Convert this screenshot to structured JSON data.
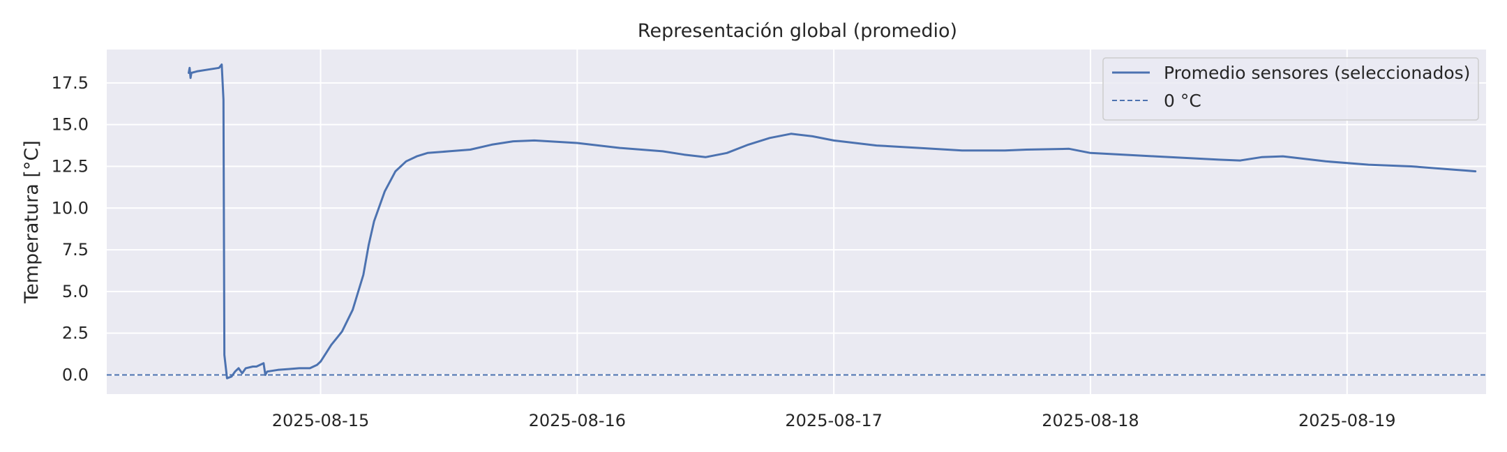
{
  "chart_data": {
    "type": "line",
    "title": "Representación global (promedio)",
    "xlabel": "",
    "ylabel": "Temperatura [°C]",
    "x_axis_type": "datetime",
    "xlim": [
      "2025-08-14 04:00",
      "2025-08-19 13:00"
    ],
    "ylim": [
      -1.15,
      19.5
    ],
    "x_ticks": [
      "2025-08-15",
      "2025-08-16",
      "2025-08-17",
      "2025-08-18",
      "2025-08-19"
    ],
    "y_ticks": [
      "0.0",
      "2.5",
      "5.0",
      "7.5",
      "10.0",
      "12.5",
      "15.0",
      "17.5"
    ],
    "y_tick_values": [
      0,
      2.5,
      5,
      7.5,
      10,
      12.5,
      15,
      17.5
    ],
    "grid": true,
    "legend_position": "top-right",
    "colors": {
      "line": "#4c72b0",
      "plot_bg": "#eaeaf2",
      "grid": "#ffffff",
      "text": "#262626"
    },
    "series": [
      {
        "name": "Promedio sensores (seleccionados)",
        "style": "solid",
        "points": [
          [
            "2025-08-14 11:40",
            18.1
          ],
          [
            "2025-08-14 11:45",
            18.4
          ],
          [
            "2025-08-14 11:50",
            17.8
          ],
          [
            "2025-08-14 11:55",
            18.1
          ],
          [
            "2025-08-14 12:30",
            18.2
          ],
          [
            "2025-08-14 13:30",
            18.3
          ],
          [
            "2025-08-14 14:30",
            18.4
          ],
          [
            "2025-08-14 14:45",
            18.6
          ],
          [
            "2025-08-14 14:55",
            16.5
          ],
          [
            "2025-08-14 15:00",
            1.2
          ],
          [
            "2025-08-14 15:15",
            -0.2
          ],
          [
            "2025-08-14 15:40",
            -0.1
          ],
          [
            "2025-08-14 16:00",
            0.2
          ],
          [
            "2025-08-14 16:20",
            0.4
          ],
          [
            "2025-08-14 16:40",
            0.1
          ],
          [
            "2025-08-14 17:00",
            0.4
          ],
          [
            "2025-08-14 17:40",
            0.5
          ],
          [
            "2025-08-14 18:00",
            0.5
          ],
          [
            "2025-08-14 18:20",
            0.6
          ],
          [
            "2025-08-14 18:40",
            0.7
          ],
          [
            "2025-08-14 18:50",
            0.0
          ],
          [
            "2025-08-14 19:00",
            0.2
          ],
          [
            "2025-08-14 20:00",
            0.3
          ],
          [
            "2025-08-14 21:00",
            0.35
          ],
          [
            "2025-08-14 22:00",
            0.4
          ],
          [
            "2025-08-14 23:00",
            0.4
          ],
          [
            "2025-08-14 23:40",
            0.6
          ],
          [
            "2025-08-15 00:00",
            0.8
          ],
          [
            "2025-08-15 00:30",
            1.3
          ],
          [
            "2025-08-15 01:00",
            1.8
          ],
          [
            "2025-08-15 01:30",
            2.2
          ],
          [
            "2025-08-15 02:00",
            2.6
          ],
          [
            "2025-08-15 03:00",
            3.9
          ],
          [
            "2025-08-15 04:00",
            6.0
          ],
          [
            "2025-08-15 04:30",
            7.8
          ],
          [
            "2025-08-15 05:00",
            9.2
          ],
          [
            "2025-08-15 06:00",
            11.0
          ],
          [
            "2025-08-15 07:00",
            12.2
          ],
          [
            "2025-08-15 08:00",
            12.8
          ],
          [
            "2025-08-15 09:00",
            13.1
          ],
          [
            "2025-08-15 10:00",
            13.3
          ],
          [
            "2025-08-15 12:00",
            13.4
          ],
          [
            "2025-08-15 14:00",
            13.5
          ],
          [
            "2025-08-15 16:00",
            13.8
          ],
          [
            "2025-08-15 18:00",
            14.0
          ],
          [
            "2025-08-15 20:00",
            14.05
          ],
          [
            "2025-08-16 00:00",
            13.9
          ],
          [
            "2025-08-16 04:00",
            13.6
          ],
          [
            "2025-08-16 08:00",
            13.4
          ],
          [
            "2025-08-16 10:00",
            13.2
          ],
          [
            "2025-08-16 12:00",
            13.05
          ],
          [
            "2025-08-16 14:00",
            13.3
          ],
          [
            "2025-08-16 16:00",
            13.8
          ],
          [
            "2025-08-16 18:00",
            14.2
          ],
          [
            "2025-08-16 20:00",
            14.45
          ],
          [
            "2025-08-16 22:00",
            14.3
          ],
          [
            "2025-08-17 00:00",
            14.05
          ],
          [
            "2025-08-17 04:00",
            13.75
          ],
          [
            "2025-08-17 08:00",
            13.6
          ],
          [
            "2025-08-17 12:00",
            13.45
          ],
          [
            "2025-08-17 16:00",
            13.45
          ],
          [
            "2025-08-17 18:00",
            13.5
          ],
          [
            "2025-08-17 22:00",
            13.55
          ],
          [
            "2025-08-18 00:00",
            13.3
          ],
          [
            "2025-08-18 06:00",
            13.1
          ],
          [
            "2025-08-18 12:00",
            12.9
          ],
          [
            "2025-08-18 14:00",
            12.85
          ],
          [
            "2025-08-18 16:00",
            13.05
          ],
          [
            "2025-08-18 18:00",
            13.1
          ],
          [
            "2025-08-18 22:00",
            12.8
          ],
          [
            "2025-08-19 02:00",
            12.6
          ],
          [
            "2025-08-19 06:00",
            12.5
          ],
          [
            "2025-08-19 10:00",
            12.3
          ],
          [
            "2025-08-19 11:00",
            12.25
          ],
          [
            "2025-08-19 12:00",
            12.2
          ]
        ]
      },
      {
        "name": "0 °C",
        "style": "dashed",
        "y": 0
      }
    ]
  }
}
